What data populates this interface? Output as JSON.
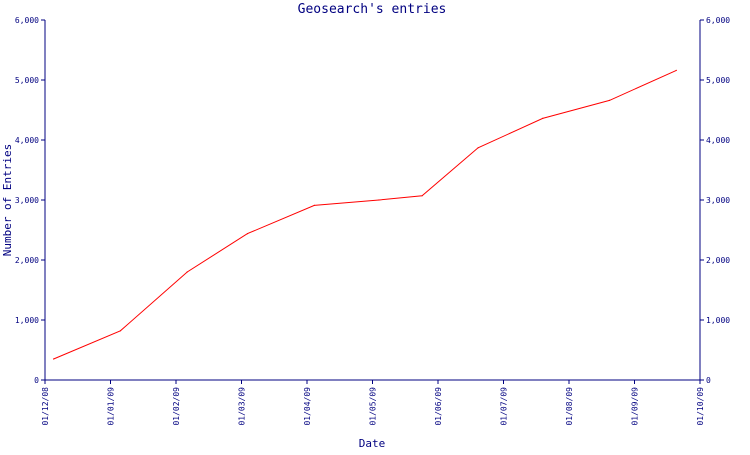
{
  "colors": {
    "axis": "#000080",
    "text": "#000080",
    "series": "#ff0000",
    "background": "#ffffff"
  },
  "chart_data": {
    "type": "line",
    "title": "Geosearch's entries",
    "xlabel": "Date",
    "ylabel": "Number of Entries",
    "grid": false,
    "legend": "none",
    "x_tick_labels": [
      "01/12/08",
      "01/01/09",
      "01/02/09",
      "01/03/09",
      "01/04/09",
      "01/05/09",
      "01/06/09",
      "01/07/09",
      "01/08/09",
      "01/09/09",
      "01/10/09"
    ],
    "x_range": [
      "2008-12-01",
      "2009-10-01"
    ],
    "y_tick_labels": [
      "0",
      "1,000",
      "2,000",
      "3,000",
      "4,000",
      "5,000",
      "6,000"
    ],
    "ylim": [
      0,
      6000
    ],
    "secondary_y_axis": "mirror of left axis",
    "series": [
      {
        "color": "#ff0000",
        "points": [
          {
            "x": "2008-12-05",
            "y": 350
          },
          {
            "x": "2009-01-05",
            "y": 820
          },
          {
            "x": "2009-02-05",
            "y": 1800
          },
          {
            "x": "2009-03-05",
            "y": 2440
          },
          {
            "x": "2009-04-05",
            "y": 2910
          },
          {
            "x": "2009-05-05",
            "y": 3000
          },
          {
            "x": "2009-05-25",
            "y": 3070
          },
          {
            "x": "2009-06-20",
            "y": 3870
          },
          {
            "x": "2009-07-20",
            "y": 4360
          },
          {
            "x": "2009-08-20",
            "y": 4660
          },
          {
            "x": "2009-09-20",
            "y": 5160
          }
        ]
      }
    ]
  }
}
